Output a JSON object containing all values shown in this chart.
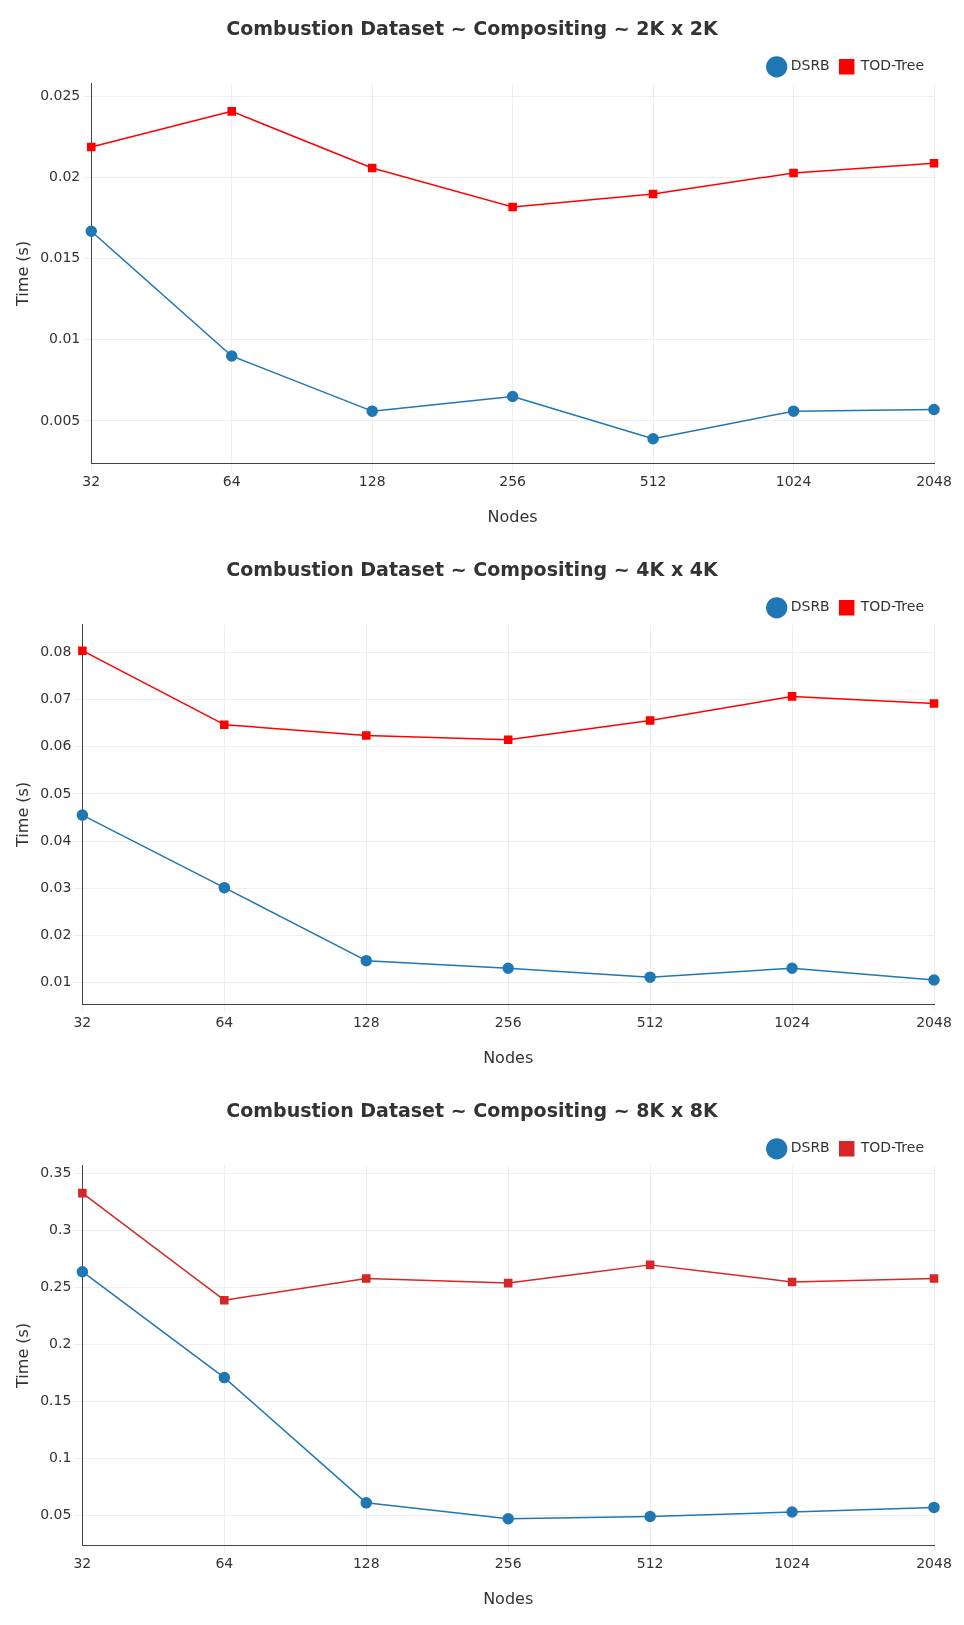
{
  "chart_data": [
    {
      "type": "line",
      "title": "Combustion Dataset ~ Compositing ~ 2K x 2K",
      "xlabel": "Nodes",
      "ylabel": "Time (s)",
      "categories": [
        "32",
        "64",
        "128",
        "256",
        "512",
        "1024",
        "2048"
      ],
      "series": [
        {
          "name": "DSRB",
          "color": "#1f77b4",
          "marker": "circle",
          "values": [
            0.0167,
            0.009,
            0.0056,
            0.0065,
            0.0039,
            0.0056,
            0.0057
          ]
        },
        {
          "name": "TOD-Tree",
          "color": "#ff0000",
          "marker": "square",
          "values": [
            0.0219,
            0.0241,
            0.0206,
            0.0182,
            0.019,
            0.0203,
            0.0209
          ]
        }
      ],
      "ylim": [
        0.0024,
        0.0258
      ],
      "yticks": [
        0.005,
        0.01,
        0.015,
        0.02,
        0.025
      ],
      "grid": true,
      "legend": "top right"
    },
    {
      "type": "line",
      "title": "Combustion Dataset ~ Compositing ~ 4K x 4K",
      "xlabel": "Nodes",
      "ylabel": "Time (s)",
      "categories": [
        "32",
        "64",
        "128",
        "256",
        "512",
        "1024",
        "2048"
      ],
      "series": [
        {
          "name": "DSRB",
          "color": "#1f77b4",
          "marker": "circle",
          "values": [
            0.0455,
            0.0301,
            0.0146,
            0.013,
            0.0111,
            0.013,
            0.0105
          ]
        },
        {
          "name": "TOD-Tree",
          "color": "#ff0000",
          "marker": "square",
          "values": [
            0.0804,
            0.0647,
            0.0624,
            0.0615,
            0.0656,
            0.0707,
            0.0692
          ]
        }
      ],
      "ylim": [
        0.0054,
        0.0859
      ],
      "yticks": [
        0.01,
        0.02,
        0.03,
        0.04,
        0.05,
        0.06,
        0.07,
        0.08
      ],
      "grid": true,
      "legend": "top right"
    },
    {
      "type": "line",
      "title": "Combustion Dataset ~ Compositing ~ 8K x 8K",
      "xlabel": "Nodes",
      "ylabel": "Time (s)",
      "categories": [
        "32",
        "64",
        "128",
        "256",
        "512",
        "1024",
        "2048"
      ],
      "series": [
        {
          "name": "DSRB",
          "color": "#1f77b4",
          "marker": "circle",
          "values": [
            0.264,
            0.171,
            0.061,
            0.047,
            0.049,
            0.053,
            0.057
          ]
        },
        {
          "name": "TOD-Tree",
          "color": "#d62728",
          "marker": "square",
          "values": [
            0.333,
            0.239,
            0.258,
            0.254,
            0.27,
            0.255,
            0.258
          ]
        }
      ],
      "ylim": [
        0.024,
        0.357
      ],
      "yticks": [
        0.05,
        0.1,
        0.15,
        0.2,
        0.25,
        0.3,
        0.35
      ],
      "grid": true,
      "legend": "top right"
    }
  ]
}
